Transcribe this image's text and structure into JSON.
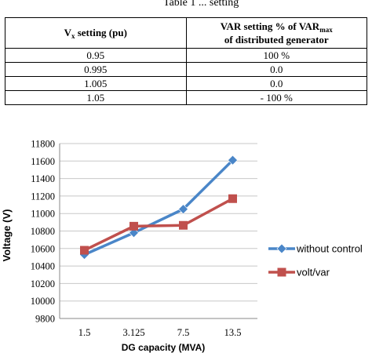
{
  "top_caption": "Table 1 ... setting",
  "table": {
    "headers": {
      "col1_main": "V",
      "col1_sub": "x",
      "col1_rest": " setting (pu)",
      "col2_line1_main": "VAR setting % of VAR",
      "col2_line1_sub": "max",
      "col2_line2": "of distributed generator"
    },
    "rows": [
      {
        "vx": "0.95",
        "var": "100 %"
      },
      {
        "vx": "0.995",
        "var": "0.0"
      },
      {
        "vx": "1.005",
        "var": "0.0"
      },
      {
        "vx": "1.05",
        "var": "- 100 %"
      }
    ]
  },
  "chart_data": {
    "type": "line",
    "categories": [
      "1.5",
      "3.125",
      "7.5",
      "13.5"
    ],
    "y_ticks": [
      "11800",
      "11600",
      "11400",
      "11200",
      "11000",
      "10800",
      "10600",
      "10400",
      "10200",
      "10000",
      "9800"
    ],
    "ylim": [
      9800,
      11800
    ],
    "xlabel": "DG capacity (MVA)",
    "ylabel": "Voltage (V)",
    "grid": true,
    "legend_position": "right",
    "series": [
      {
        "name": "without control",
        "values": [
          10530,
          10780,
          11050,
          11610
        ],
        "color": "#4a86c8",
        "marker": "diamond"
      },
      {
        "name": "volt/var",
        "values": [
          10580,
          10855,
          10865,
          11170
        ],
        "color": "#c0504d",
        "marker": "square"
      }
    ]
  }
}
